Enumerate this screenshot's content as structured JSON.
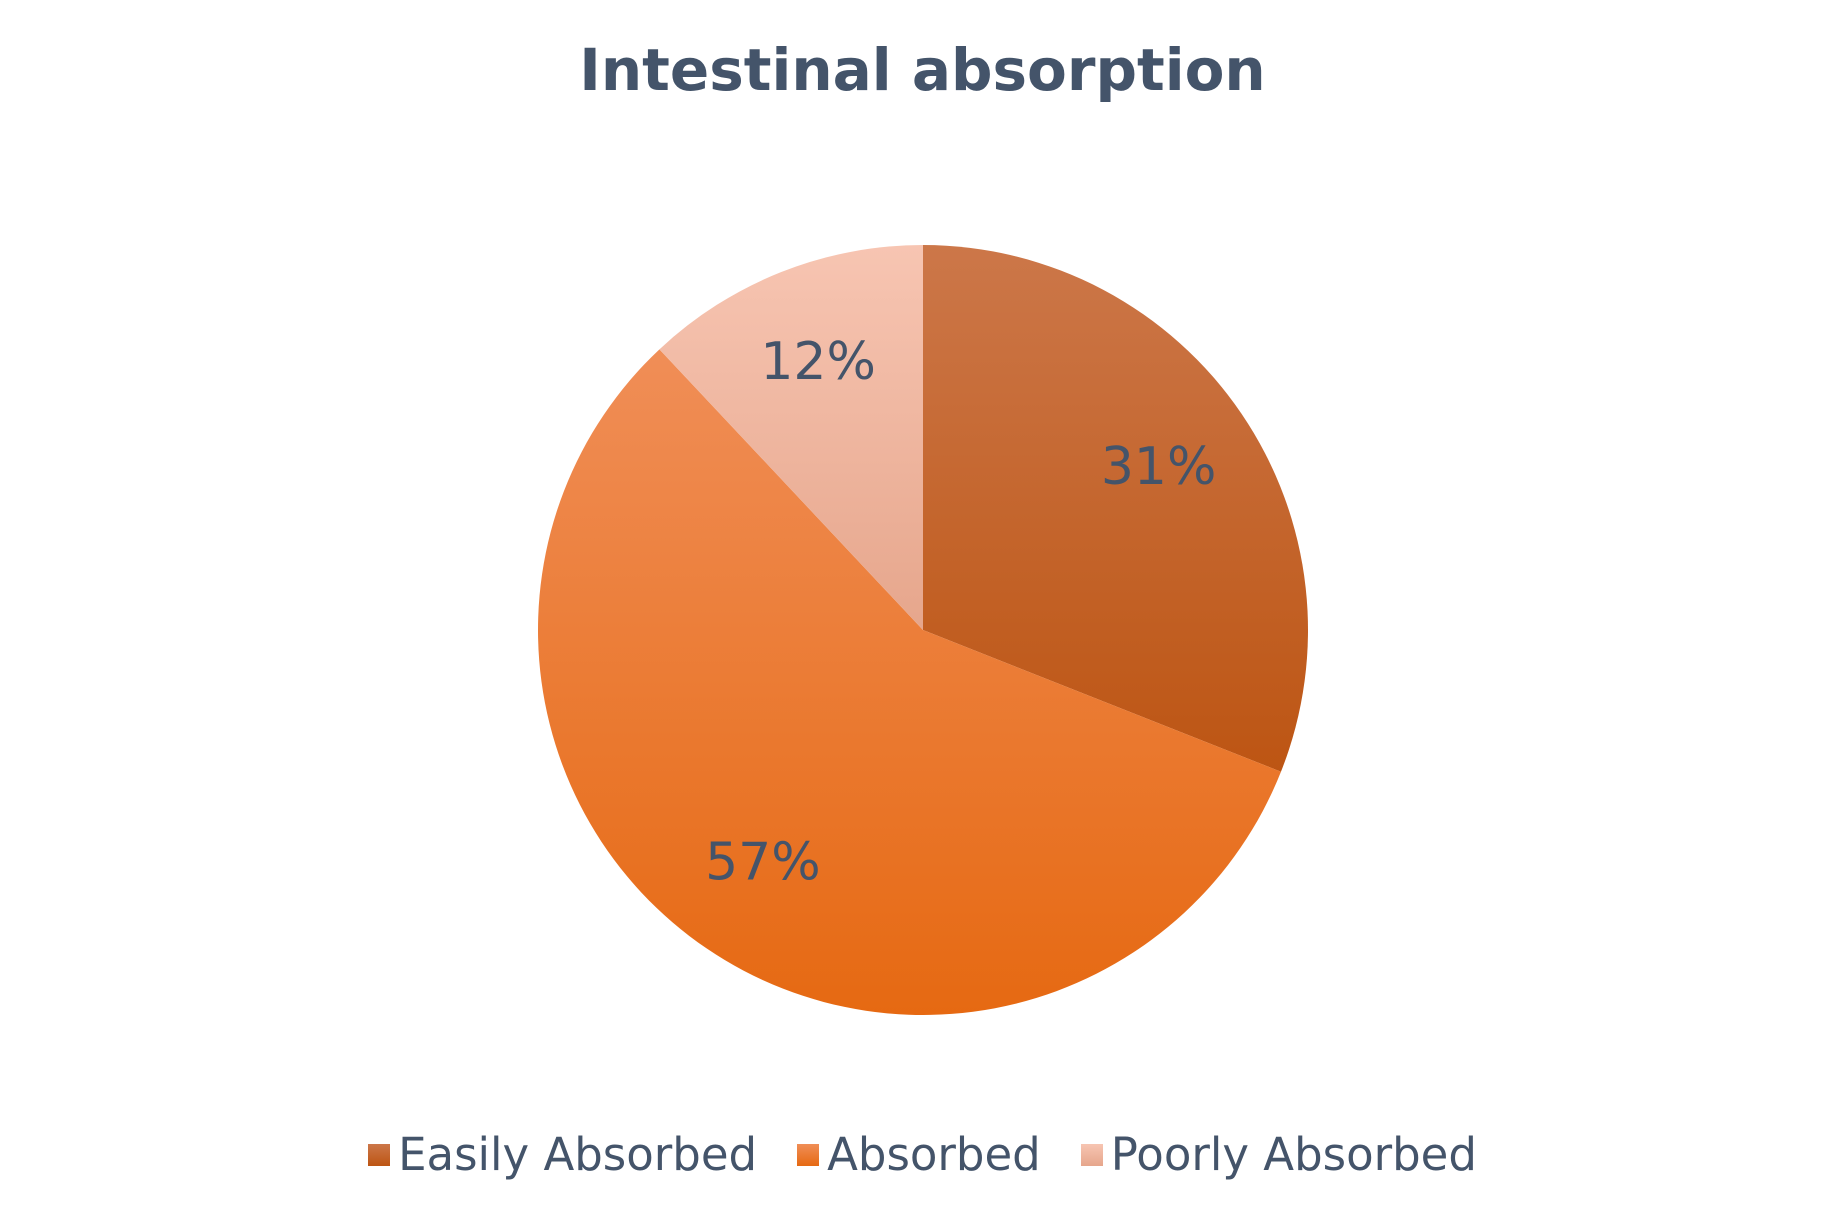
{
  "chart_data": {
    "type": "pie",
    "title": "Intestinal absorption",
    "categories": [
      "Easily Absorbed",
      "Absorbed",
      "Poorly Absorbed"
    ],
    "values": [
      31,
      57,
      12
    ],
    "labels": [
      "31%",
      "57%",
      "12%"
    ],
    "colors": [
      "#c55a11",
      "#ed7d31",
      "#f4b183"
    ],
    "start_angle": "12 o'clock, clockwise",
    "legend_position": "bottom"
  }
}
